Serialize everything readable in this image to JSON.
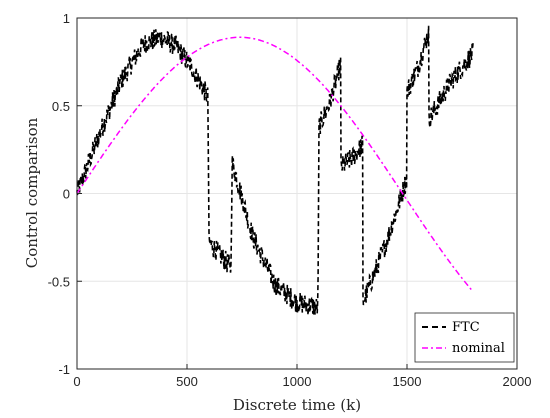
{
  "chart_data": {
    "type": "line",
    "title": "",
    "xlabel": "Discrete time (k)",
    "ylabel": "Control comparison",
    "xlim": [
      0,
      2000
    ],
    "ylim": [
      -1,
      1
    ],
    "xticks": [
      0,
      500,
      1000,
      1500,
      2000
    ],
    "yticks": [
      -1,
      -0.5,
      0,
      0.5,
      1
    ],
    "xtick_labels": [
      "0",
      "500",
      "1000",
      "1500",
      "2000"
    ],
    "ytick_labels": [
      "-1",
      "-0.5",
      "0",
      "0.5",
      "1"
    ],
    "grid": true,
    "legend_position": "bottom-right",
    "series": [
      {
        "name": "FTC",
        "color": "#000000",
        "style": "dashed",
        "noise_amplitude": 0.06,
        "x_range": [
          0,
          1800
        ],
        "points": [
          [
            0,
            0.0
          ],
          [
            100,
            0.33
          ],
          [
            200,
            0.64
          ],
          [
            300,
            0.85
          ],
          [
            380,
            0.89
          ],
          [
            450,
            0.84
          ],
          [
            520,
            0.72
          ],
          [
            595,
            0.55
          ],
          [
            600,
            -0.28
          ],
          [
            650,
            -0.35
          ],
          [
            700,
            -0.42
          ],
          [
            705,
            0.18
          ],
          [
            800,
            -0.25
          ],
          [
            900,
            -0.52
          ],
          [
            1000,
            -0.62
          ],
          [
            1095,
            -0.65
          ],
          [
            1100,
            0.38
          ],
          [
            1150,
            0.52
          ],
          [
            1198,
            0.74
          ],
          [
            1200,
            0.15
          ],
          [
            1250,
            0.2
          ],
          [
            1298,
            0.28
          ],
          [
            1300,
            -0.62
          ],
          [
            1400,
            -0.3
          ],
          [
            1498,
            0.08
          ],
          [
            1500,
            0.58
          ],
          [
            1550,
            0.72
          ],
          [
            1598,
            0.92
          ],
          [
            1600,
            0.42
          ],
          [
            1700,
            0.64
          ],
          [
            1800,
            0.8
          ]
        ]
      },
      {
        "name": "nominal",
        "color": "#ff00ff",
        "style": "dash-dot",
        "function": "0.89*sin(2*pi*k/2960)",
        "x_range": [
          0,
          1800
        ]
      }
    ]
  }
}
